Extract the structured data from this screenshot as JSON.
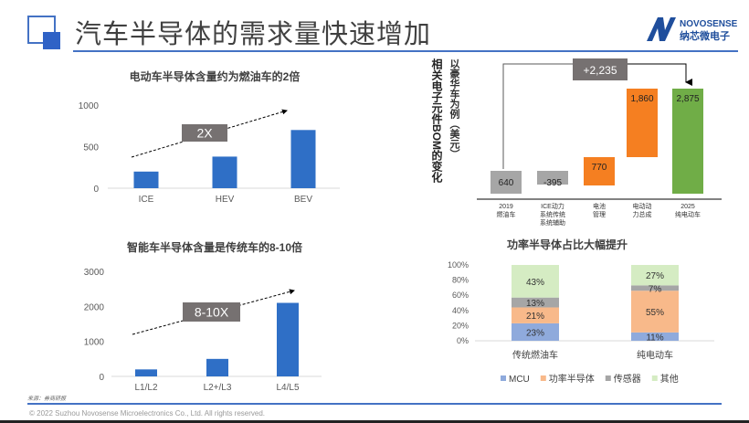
{
  "header": {
    "title": "汽车半导体的需求量快速增加",
    "logo_en": "NOVOSENSE",
    "logo_cn": "纳芯微电子"
  },
  "footer": {
    "source": "来源：券商研报",
    "copyright": "© 2022 Suzhou Novosense Microelectronics Co., Ltd.  All rights reserved."
  },
  "colors": {
    "accent": "#4472c4",
    "bar": "#2f6fc6",
    "gray": "#a6a6a6",
    "orange": "#f57f21",
    "green": "#70ad47",
    "callout": "#767171"
  },
  "chart_data": [
    {
      "type": "bar",
      "title": "电动车半导体含量约为燃油车的2倍",
      "categories": [
        "ICE",
        "HEV",
        "BEV"
      ],
      "values": [
        200,
        380,
        700
      ],
      "ylim": [
        0,
        1000
      ],
      "yticks": [
        "0",
        "500",
        "1000"
      ],
      "annotation": "2X"
    },
    {
      "type": "bar",
      "title": "智能车半导体含量是传统车的8-10倍",
      "categories": [
        "L1/L2",
        "L2+/L3",
        "L4/L5"
      ],
      "values": [
        200,
        500,
        2100
      ],
      "ylim": [
        0,
        3000
      ],
      "yticks": [
        "0",
        "1000",
        "2000",
        "3000"
      ],
      "annotation": "8-10X"
    },
    {
      "type": "waterfall",
      "title": "相关电子元件BOM的变化",
      "subtitle": "以豪华车为例（美元）",
      "categories": [
        "2019\n燃油车",
        "ICE动力\n系统传统\n系统辅助",
        "电池\n管理",
        "电动动\n力总成",
        "2025\n纯电动车"
      ],
      "values": [
        640,
        -395,
        770,
        1860,
        2875
      ],
      "labels": [
        "640",
        "-395",
        "770",
        "1,860",
        "2,875"
      ],
      "annotation": "+2,235"
    },
    {
      "type": "stacked_bar",
      "title": "功率半导体占比大幅提升",
      "categories": [
        "传统燃油车",
        "纯电动车"
      ],
      "yticks": [
        "0%",
        "20%",
        "40%",
        "60%",
        "80%",
        "100%"
      ],
      "series": [
        {
          "name": "MCU",
          "values": [
            23,
            11
          ],
          "color": "#8faadc"
        },
        {
          "name": "功率半导体",
          "values": [
            21,
            55
          ],
          "color": "#f8b98a"
        },
        {
          "name": "传感器",
          "values": [
            13,
            7
          ],
          "color": "#a6a6a6"
        },
        {
          "name": "其他",
          "values": [
            43,
            27
          ],
          "color": "#d5ecc3"
        }
      ]
    }
  ]
}
